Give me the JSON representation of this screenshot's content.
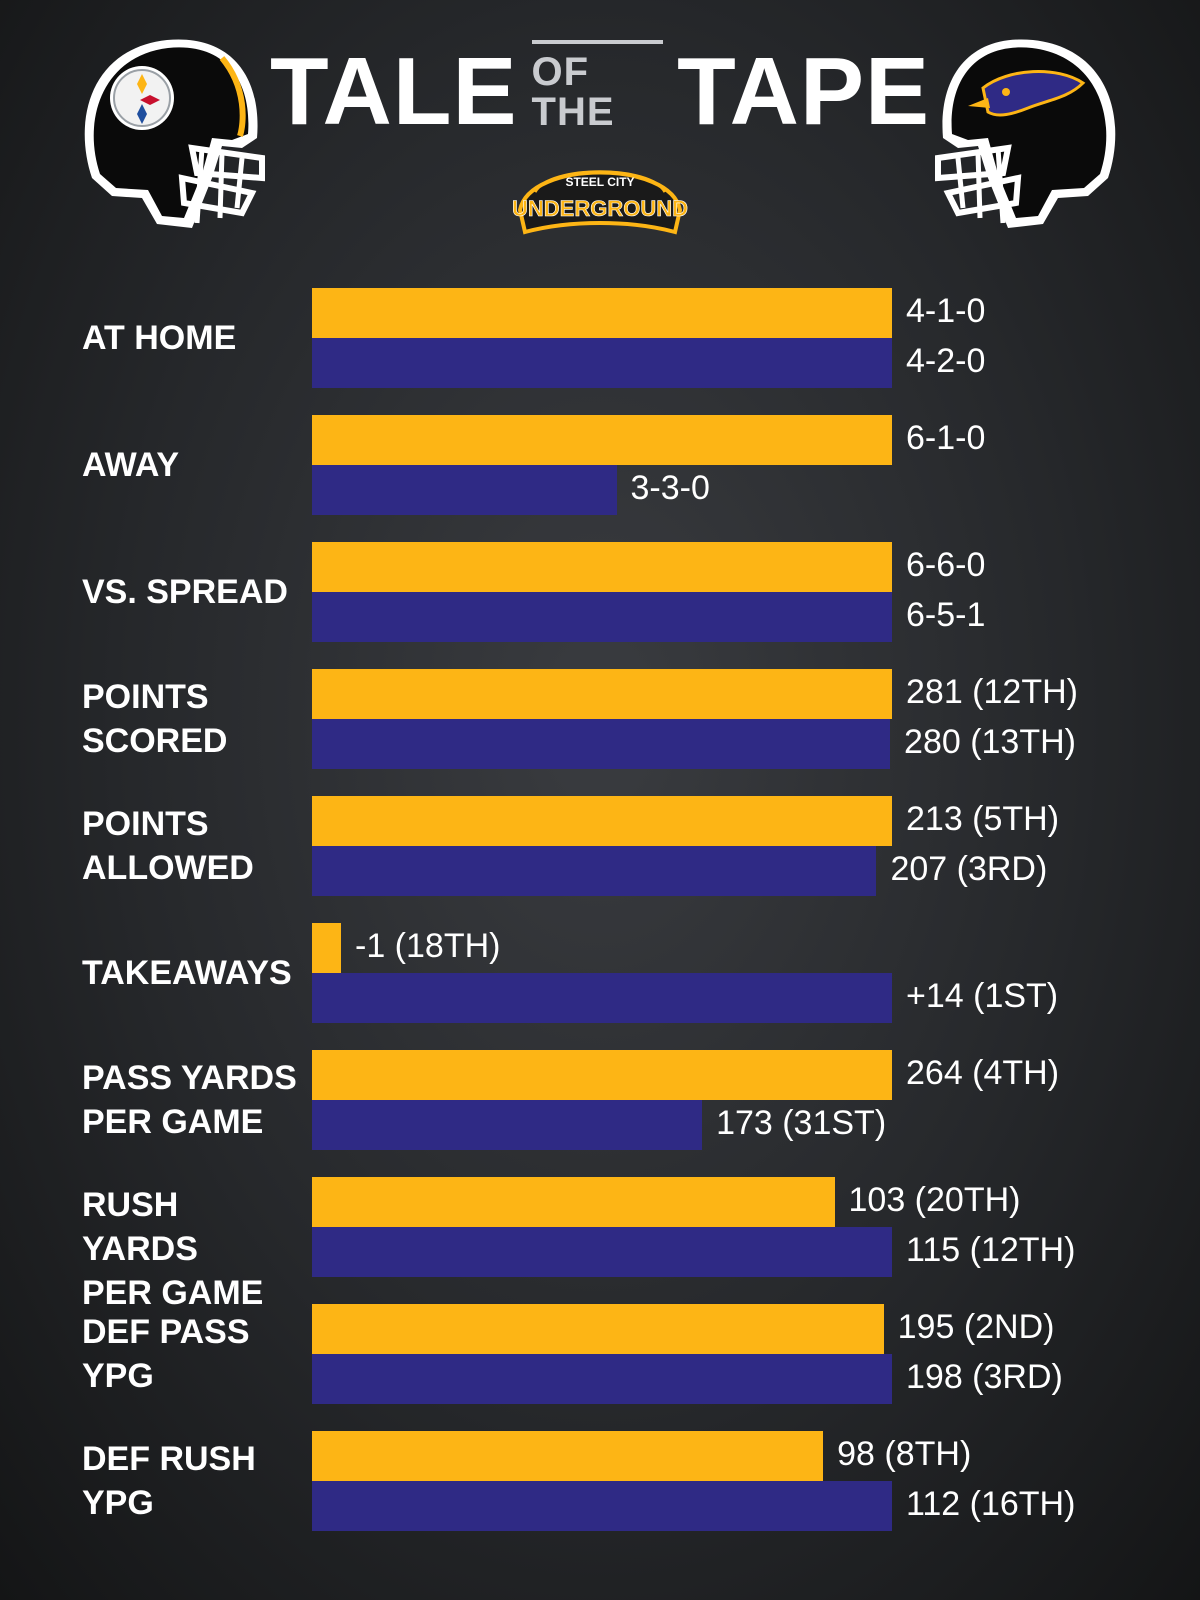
{
  "header": {
    "title_left": "TALE",
    "title_mid": "OF THE",
    "title_right": "TAPE",
    "logo_top": "STEEL CITY",
    "logo_main": "UNDERGROUND",
    "left_team_icon": "steelers-helmet-icon",
    "right_team_icon": "ravens-helmet-icon"
  },
  "colors": {
    "team1": "#fdb515",
    "team2": "#2f2a85"
  },
  "chart_data": {
    "type": "bar",
    "orientation": "horizontal",
    "grid": false,
    "rows": [
      {
        "label": "AT HOME",
        "team1": {
          "value": 4,
          "text": "4-1-0"
        },
        "team2": {
          "value": 4,
          "text": "4-2-0"
        }
      },
      {
        "label": "AWAY",
        "team1": {
          "value": 6,
          "text": "6-1-0"
        },
        "team2": {
          "value": 3,
          "text": "3-3-0"
        }
      },
      {
        "label": "VS. SPREAD",
        "team1": {
          "value": 6,
          "text": "6-6-0"
        },
        "team2": {
          "value": 6,
          "text": "6-5-1"
        }
      },
      {
        "label": "POINTS\nSCORED",
        "team1": {
          "value": 281,
          "text": "281 (12TH)"
        },
        "team2": {
          "value": 280,
          "text": "280 (13TH)"
        }
      },
      {
        "label": "POINTS\nALLOWED",
        "team1": {
          "value": 213,
          "text": "213 (5TH)"
        },
        "team2": {
          "value": 207,
          "text": "207 (3RD)"
        }
      },
      {
        "label": "TAKEAWAYS",
        "team1": {
          "value": -1,
          "text": "-1 (18TH)"
        },
        "team2": {
          "value": 14,
          "text": "+14 (1ST)"
        }
      },
      {
        "label": "PASS YARDS\nPER GAME",
        "team1": {
          "value": 264,
          "text": "264 (4TH)"
        },
        "team2": {
          "value": 173,
          "text": "173 (31ST)"
        }
      },
      {
        "label": "RUSH YARDS\nPER GAME",
        "team1": {
          "value": 103,
          "text": "103 (20TH)"
        },
        "team2": {
          "value": 115,
          "text": "115 (12TH)"
        }
      },
      {
        "label": "DEF PASS\nYPG",
        "team1": {
          "value": 195,
          "text": "195 (2ND)"
        },
        "team2": {
          "value": 198,
          "text": "198 (3RD)"
        }
      },
      {
        "label": "DEF RUSH\nYPG",
        "team1": {
          "value": 98,
          "text": "98 (8TH)"
        },
        "team2": {
          "value": 112,
          "text": "112 (16TH)"
        }
      }
    ]
  }
}
